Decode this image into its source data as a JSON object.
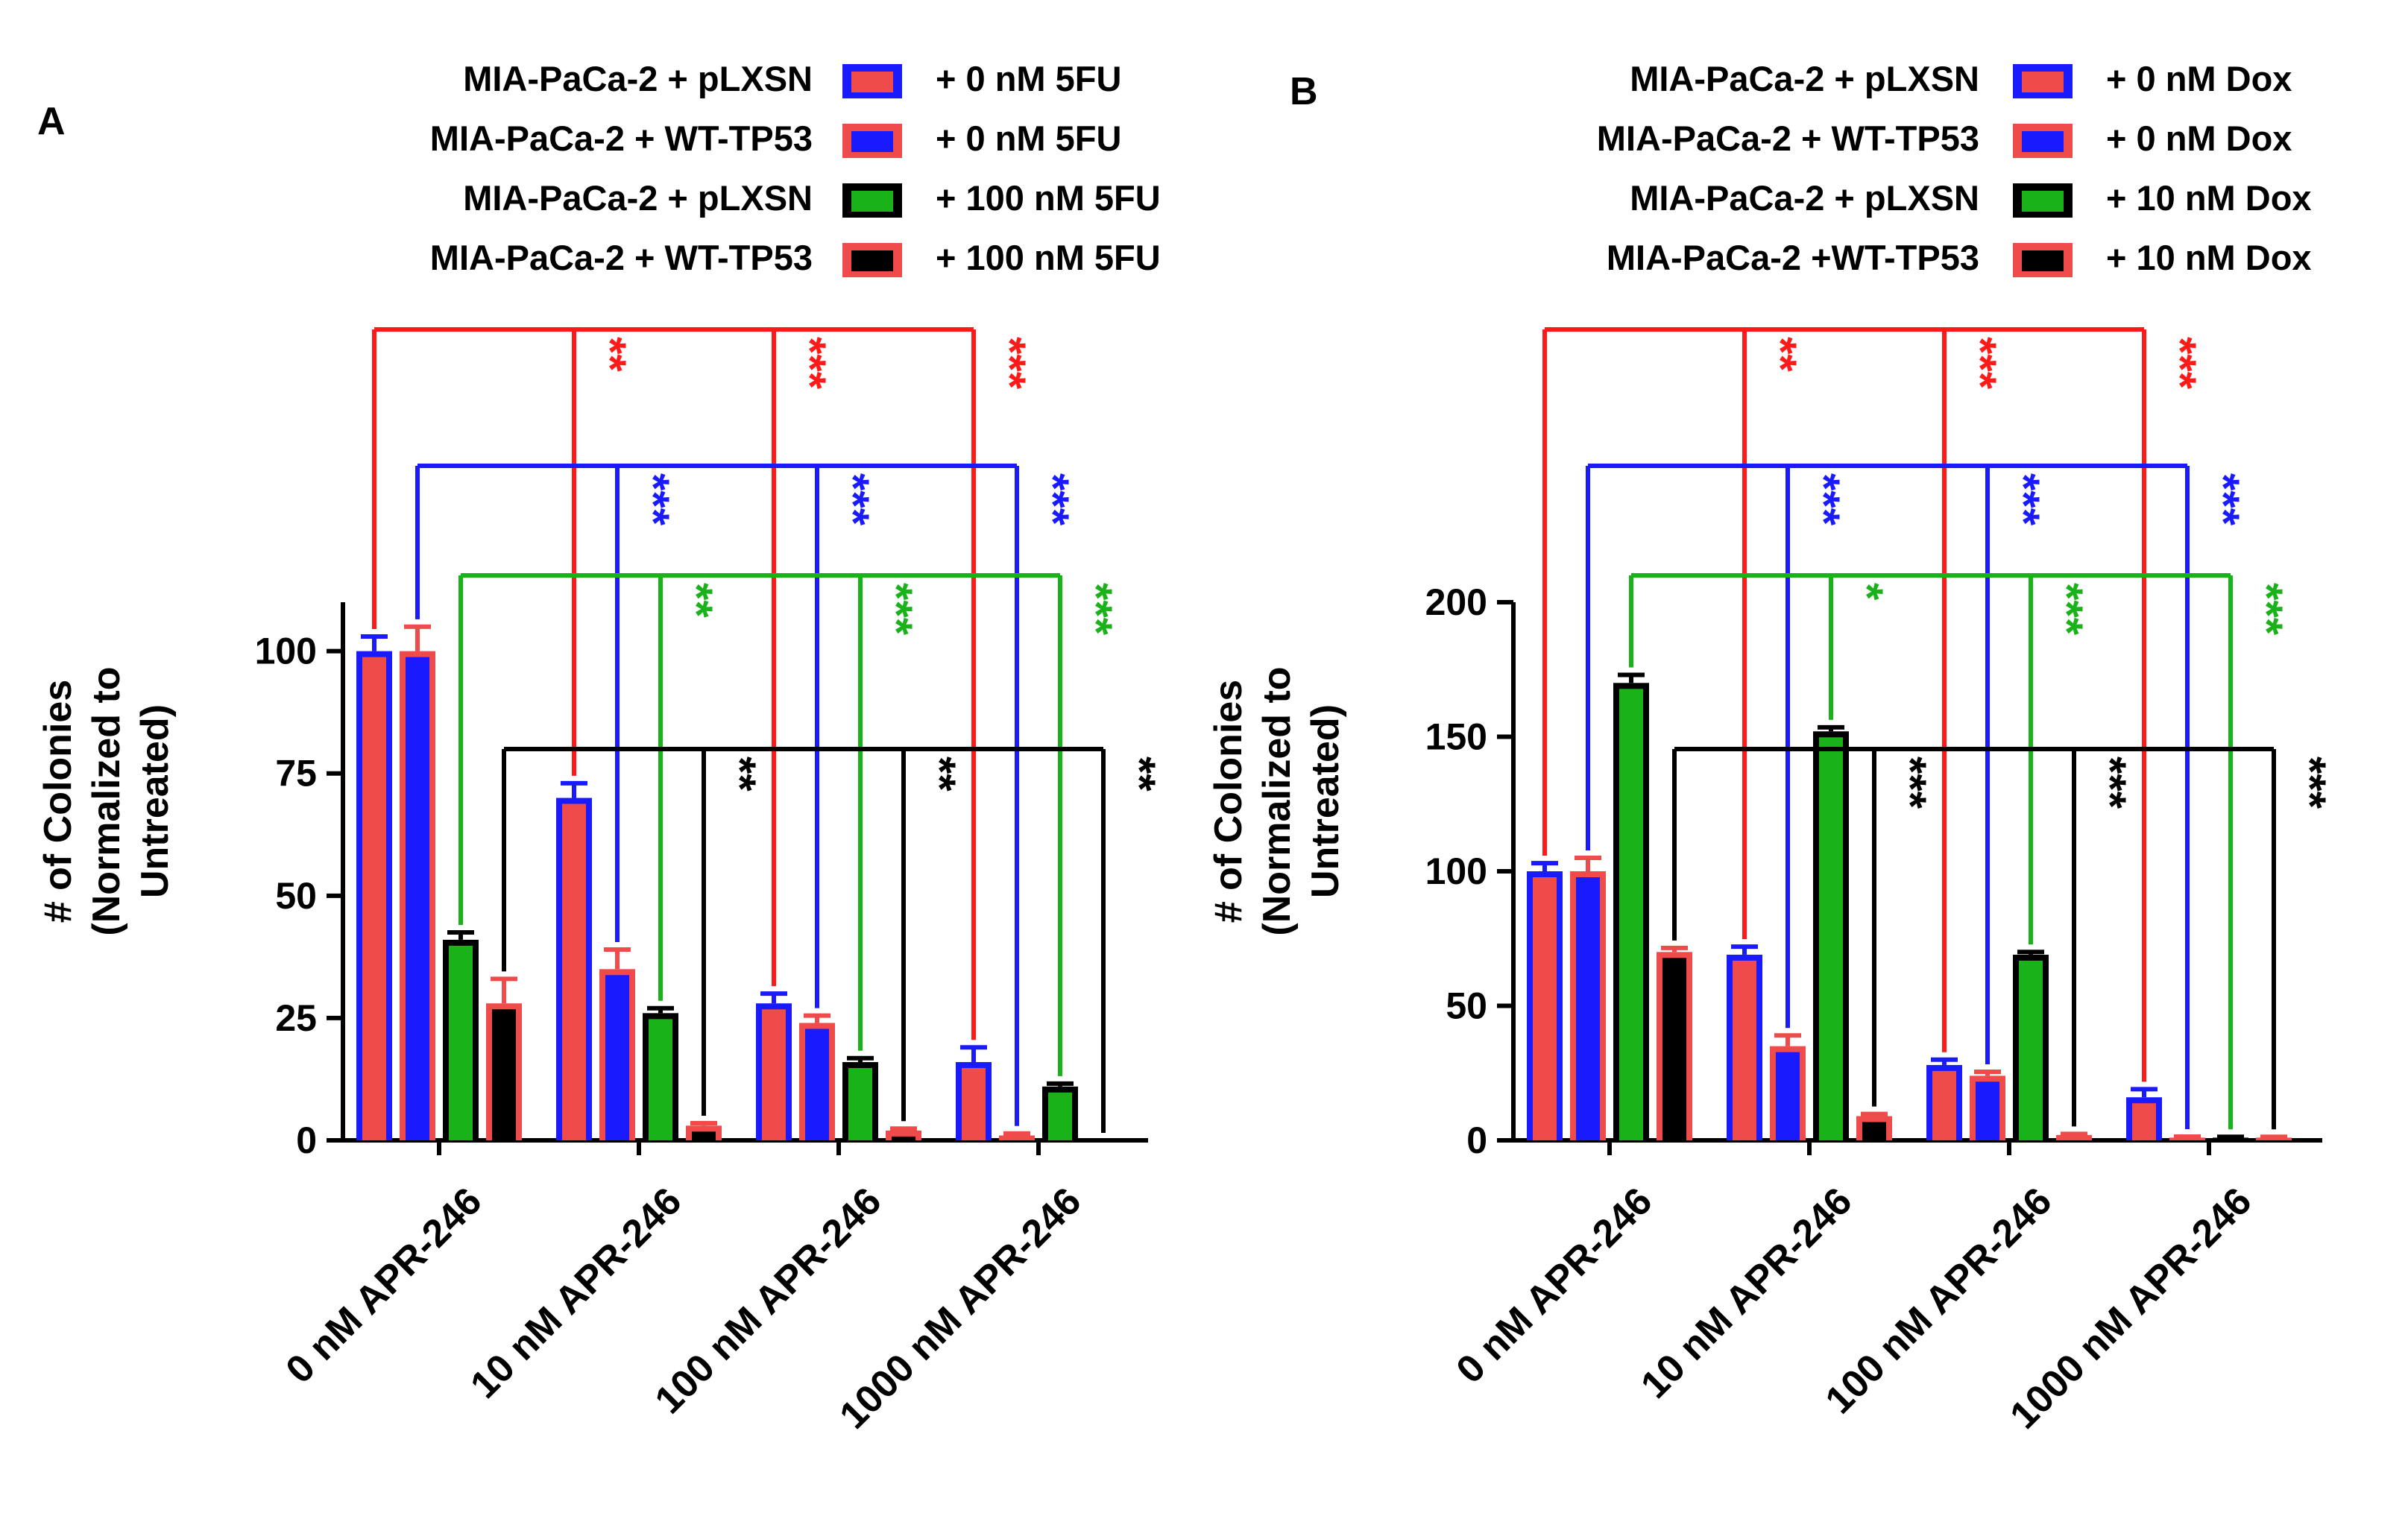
{
  "chart_data": [
    {
      "panel_label": "A",
      "type": "bar",
      "categories": [
        "0 nM APR-246",
        "10 nM APR-246",
        "100 nM APR-246",
        "1000 nM APR-246"
      ],
      "ylabel_line1": "# of Colonies",
      "ylabel_line2": "(Normalized to",
      "ylabel_line3": "Untreated)",
      "ylim": [
        0,
        110
      ],
      "yticks": [
        0,
        25,
        50,
        75,
        100
      ],
      "legend": [
        {
          "group": "MIA-PaCa-2 + pLXSN",
          "treatment": "+ 0 nM 5FU",
          "fill": "#ef4b4b",
          "edge": "#1a1aff"
        },
        {
          "group": "MIA-PaCa-2 + WT-TP53",
          "treatment": "+ 0 nM 5FU",
          "fill": "#1a1aff",
          "edge": "#ef4b4b"
        },
        {
          "group": "MIA-PaCa-2 + pLXSN",
          "treatment": "+ 100 nM 5FU",
          "fill": "#19b219",
          "edge": "#000000"
        },
        {
          "group": "MIA-PaCa-2 + WT-TP53",
          "treatment": "+ 100 nM 5FU",
          "fill": "#000000",
          "edge": "#ef4b4b"
        }
      ],
      "series": [
        {
          "name": "MIA-PaCa-2 + pLXSN + 0 nM 5FU",
          "values": [
            100,
            70,
            28,
            16
          ],
          "errors": [
            3,
            3,
            2,
            3
          ]
        },
        {
          "name": "MIA-PaCa-2 + WT-TP53 + 0 nM 5FU",
          "values": [
            100,
            35,
            24,
            1
          ],
          "errors": [
            5,
            4,
            1.5,
            0.4
          ]
        },
        {
          "name": "MIA-PaCa-2 + pLXSN + 100 nM 5FU",
          "values": [
            41,
            26,
            16,
            11
          ],
          "errors": [
            1.5,
            1,
            0.8,
            0.6
          ]
        },
        {
          "name": "MIA-PaCa-2 + WT-TP53 + 100 nM 5FU",
          "values": [
            28,
            3,
            2,
            0
          ],
          "errors": [
            5,
            0.5,
            0.4,
            0
          ]
        }
      ],
      "significance": [
        {
          "series": 0,
          "marks": [
            "**",
            "***",
            "***"
          ],
          "color": "#ff1a1a"
        },
        {
          "series": 1,
          "marks": [
            "***",
            "***",
            "***"
          ],
          "color": "#1a1aff"
        },
        {
          "series": 2,
          "marks": [
            "**",
            "***",
            "***"
          ],
          "color": "#19b219"
        },
        {
          "series": 3,
          "marks": [
            "**",
            "**",
            "**"
          ],
          "color": "#000000"
        }
      ]
    },
    {
      "panel_label": "B",
      "type": "bar",
      "categories": [
        "0 nM APR-246",
        "10 nM APR-246",
        "100 nM APR-246",
        "1000 nM APR-246"
      ],
      "ylabel_line1": "# of Colonies",
      "ylabel_line2": "(Normalized to",
      "ylabel_line3": "Untreated)",
      "ylim": [
        0,
        200
      ],
      "yticks": [
        0,
        50,
        100,
        150,
        200
      ],
      "legend": [
        {
          "group": "MIA-PaCa-2 + pLXSN",
          "treatment": "+ 0 nM Dox",
          "fill": "#ef4b4b",
          "edge": "#1a1aff"
        },
        {
          "group": "MIA-PaCa-2 + WT-TP53",
          "treatment": "+ 0 nM Dox",
          "fill": "#1a1aff",
          "edge": "#ef4b4b"
        },
        {
          "group": "MIA-PaCa-2 + pLXSN",
          "treatment": "+ 10 nM Dox",
          "fill": "#19b219",
          "edge": "#000000"
        },
        {
          "group": "MIA-PaCa-2 +WT-TP53",
          "treatment": "+ 10 nM Dox",
          "fill": "#000000",
          "edge": "#ef4b4b"
        }
      ],
      "series": [
        {
          "name": "MIA-PaCa-2 + pLXSN + 0 nM Dox",
          "values": [
            100,
            69,
            28,
            16
          ],
          "errors": [
            3,
            3,
            2,
            3
          ]
        },
        {
          "name": "MIA-PaCa-2 + WT-TP53 + 0 nM Dox",
          "values": [
            100,
            35,
            24,
            1
          ],
          "errors": [
            5,
            4,
            1.5,
            0.4
          ]
        },
        {
          "name": "MIA-PaCa-2 + pLXSN + 10 nM Dox",
          "values": [
            170,
            152,
            69,
            1
          ],
          "errors": [
            3,
            1.5,
            1,
            0.3
          ]
        },
        {
          "name": "MIA-PaCa-2 +WT-TP53 + 10 nM Dox",
          "values": [
            70,
            9,
            2,
            1
          ],
          "errors": [
            1.5,
            0.8,
            0.4,
            0.3
          ]
        }
      ],
      "significance": [
        {
          "series": 0,
          "marks": [
            "**",
            "***",
            "***"
          ],
          "color": "#ff1a1a"
        },
        {
          "series": 1,
          "marks": [
            "***",
            "***",
            "***"
          ],
          "color": "#1a1aff"
        },
        {
          "series": 2,
          "marks": [
            "*",
            "***",
            "***"
          ],
          "color": "#19b219"
        },
        {
          "series": 3,
          "marks": [
            "***",
            "***",
            "***"
          ],
          "color": "#000000"
        }
      ]
    }
  ]
}
